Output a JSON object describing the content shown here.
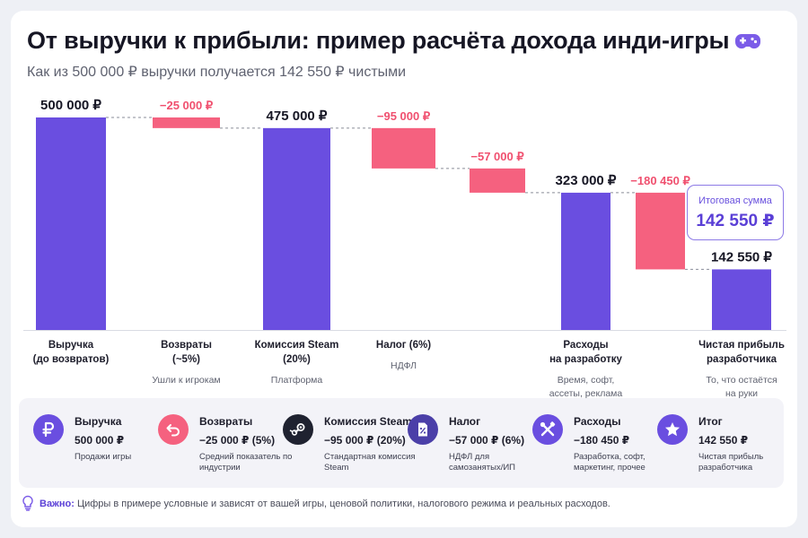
{
  "header": {
    "title": "От выручки к прибыли: пример расчёта дохода инди-игры",
    "subtitle": "Как из 500 000 ₽ выручки получается 142 550 ₽ чистыми"
  },
  "colors": {
    "total": "#6a4ee0",
    "decrease": "#f5617f",
    "accent": "#5a3fd6"
  },
  "chart_data": {
    "type": "waterfall",
    "unit": "₽",
    "ylim": [
      0,
      500000
    ],
    "steps": [
      {
        "kind": "total",
        "value": 500000,
        "label": "500 000 ₽",
        "category": "Выручка\n(до возвратов)",
        "note": ""
      },
      {
        "kind": "decrease",
        "value": -25000,
        "label": "−25 000 ₽",
        "category": "Возвраты\n(~5%)",
        "note": "Ушли к игрокам"
      },
      {
        "kind": "total",
        "value": 475000,
        "label": "475 000 ₽",
        "category": "Комиссия Steam\n(20%)",
        "note": "Платформа"
      },
      {
        "kind": "decrease",
        "value": -95000,
        "label": "−95 000 ₽",
        "category": "Налог (6%)",
        "note": "НДФЛ"
      },
      {
        "kind": "decrease",
        "value": -57000,
        "label": "−57 000 ₽",
        "category": "",
        "note": ""
      },
      {
        "kind": "total",
        "value": 323000,
        "label": "323 000 ₽",
        "category": "Расходы\nна разработку",
        "note": "Время, софт,\nассеты, реклама"
      },
      {
        "kind": "decrease",
        "value": -180450,
        "label": "−180 450 ₽",
        "category": "",
        "note": ""
      },
      {
        "kind": "total",
        "value": 142550,
        "label": "142 550 ₽",
        "category": "Чистая прибыль\nразработчика",
        "note": "То, что остаётся\nна руки"
      }
    ]
  },
  "total_box": {
    "label": "Итоговая сумма",
    "value": "142 550 ₽"
  },
  "legend": [
    {
      "icon": "ruble-icon",
      "color": "#6a4ee0",
      "title": "Выручка",
      "value": "500 000 ₽",
      "desc": "Продажи игры"
    },
    {
      "icon": "return-arrow-icon",
      "color": "#f5617f",
      "title": "Возвраты",
      "value": "−25 000 ₽ (5%)",
      "desc": "Средний показатель по индустрии"
    },
    {
      "icon": "steam-icon",
      "color": "#1f2230",
      "title": "Комиссия Steam",
      "value": "−95 000 ₽ (20%)",
      "desc": "Стандартная комиссия Steam"
    },
    {
      "icon": "tax-document-icon",
      "color": "#4b3fa8",
      "title": "Налог",
      "value": "−57 000 ₽ (6%)",
      "desc": "НДФЛ для самозанятых/ИП"
    },
    {
      "icon": "tools-icon",
      "color": "#6a4ee0",
      "title": "Расходы",
      "value": "−180 450 ₽",
      "desc": "Разработка, софт, маркетинг, прочее"
    },
    {
      "icon": "star-icon",
      "color": "#6a4ee0",
      "title": "Итог",
      "value": "142 550 ₽",
      "desc": "Чистая прибыль разработчика"
    }
  ],
  "footer": {
    "note_label": "Важно:",
    "note_text": "Цифры в примере условные и зависят от вашей игры, ценовой политики, налогового режима и реальных расходов."
  }
}
